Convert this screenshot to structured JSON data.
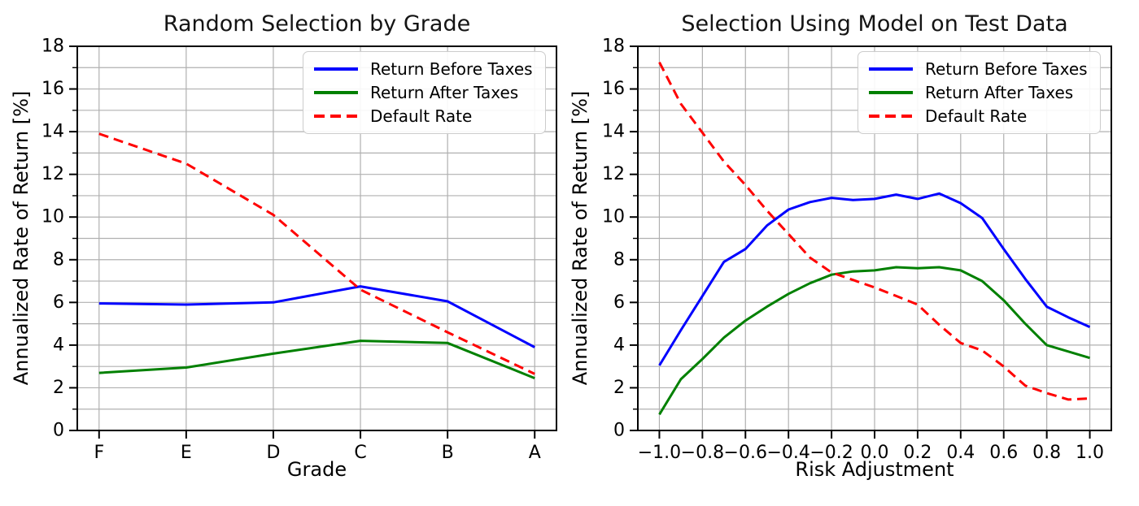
{
  "figure": {
    "background": "#ffffff",
    "text_color": "#000000",
    "grid_color": "#b0b0b0",
    "spine_color": "#000000",
    "legend_border_color": "#cccccc"
  },
  "legend": {
    "position": "upper right",
    "items": [
      {
        "label": "Return Before Taxes",
        "color": "#0000ff",
        "style": "solid"
      },
      {
        "label": "Return After Taxes",
        "color": "#008000",
        "style": "solid"
      },
      {
        "label": "Default Rate",
        "color": "#ff0000",
        "style": "dashed"
      }
    ]
  },
  "chart_data": [
    {
      "type": "line",
      "title": "Random Selection by Grade",
      "xlabel": "Grade",
      "ylabel": "Annualized Rate of Return [%]",
      "x_type": "categorical",
      "categories": [
        "F",
        "E",
        "D",
        "C",
        "B",
        "A"
      ],
      "xticklabels": [
        "F",
        "E",
        "D",
        "C",
        "B",
        "A"
      ],
      "yticks": [
        0,
        2,
        4,
        6,
        8,
        10,
        12,
        14,
        16,
        18
      ],
      "yticklabels": [
        "0",
        "2",
        "4",
        "6",
        "8",
        "10",
        "12",
        "14",
        "16",
        "18"
      ],
      "ylim": [
        0,
        18
      ],
      "grid": "on, gray, horizontal every 1 unit, vertical at each category",
      "legend_position": "upper right",
      "series": [
        {
          "name": "Return Before Taxes",
          "color": "#0000ff",
          "style": "solid",
          "values": [
            5.95,
            5.9,
            6.0,
            6.75,
            6.05,
            3.9
          ]
        },
        {
          "name": "Return After Taxes",
          "color": "#008000",
          "style": "solid",
          "values": [
            2.7,
            2.95,
            3.6,
            4.2,
            4.1,
            2.45
          ]
        },
        {
          "name": "Default Rate",
          "color": "#ff0000",
          "style": "dashed",
          "values": [
            13.9,
            12.5,
            10.1,
            6.6,
            4.6,
            2.65
          ]
        }
      ]
    },
    {
      "type": "line",
      "title": "Selection Using Model on Test Data",
      "xlabel": "Risk Adjustment",
      "ylabel": "Annualized Rate of Return [%]",
      "x_type": "numeric",
      "x": [
        -1.0,
        -0.9,
        -0.8,
        -0.7,
        -0.6,
        -0.5,
        -0.4,
        -0.3,
        -0.2,
        -0.1,
        0.0,
        0.1,
        0.2,
        0.3,
        0.4,
        0.5,
        0.6,
        0.7,
        0.8,
        0.9,
        1.0
      ],
      "xlim": [
        -1.1,
        1.1
      ],
      "xticks": [
        -1.0,
        -0.8,
        -0.6,
        -0.4,
        -0.2,
        0.0,
        0.2,
        0.4,
        0.6,
        0.8,
        1.0
      ],
      "xticklabels": [
        "−1.0",
        "−0.8",
        "−0.6",
        "−0.4",
        "−0.2",
        "0.0",
        "0.2",
        "0.4",
        "0.6",
        "0.8",
        "1.0"
      ],
      "yticks": [
        0,
        2,
        4,
        6,
        8,
        10,
        12,
        14,
        16,
        18
      ],
      "yticklabels": [
        "0",
        "2",
        "4",
        "6",
        "8",
        "10",
        "12",
        "14",
        "16",
        "18"
      ],
      "ylim": [
        0,
        18
      ],
      "grid": "on, gray, horizontal every 1 unit, vertical every 0.2",
      "legend_position": "upper right",
      "series": [
        {
          "name": "Return Before Taxes",
          "color": "#0000ff",
          "style": "solid",
          "values": [
            3.05,
            4.7,
            6.3,
            7.9,
            8.5,
            9.6,
            10.35,
            10.7,
            10.9,
            10.8,
            10.85,
            11.05,
            10.85,
            11.1,
            10.65,
            9.95,
            8.5,
            7.1,
            5.8,
            5.3,
            4.85
          ]
        },
        {
          "name": "Return After Taxes",
          "color": "#008000",
          "style": "solid",
          "values": [
            0.75,
            2.4,
            3.35,
            4.35,
            5.15,
            5.8,
            6.4,
            6.9,
            7.3,
            7.45,
            7.5,
            7.65,
            7.6,
            7.65,
            7.5,
            7.0,
            6.1,
            5.0,
            4.0,
            3.7,
            3.4
          ]
        },
        {
          "name": "Default Rate",
          "color": "#ff0000",
          "style": "dashed",
          "values": [
            17.25,
            15.3,
            13.95,
            12.6,
            11.5,
            10.3,
            9.2,
            8.1,
            7.4,
            7.05,
            6.7,
            6.3,
            5.9,
            4.95,
            4.1,
            3.75,
            3.0,
            2.1,
            1.75,
            1.45,
            1.5
          ]
        }
      ]
    }
  ]
}
